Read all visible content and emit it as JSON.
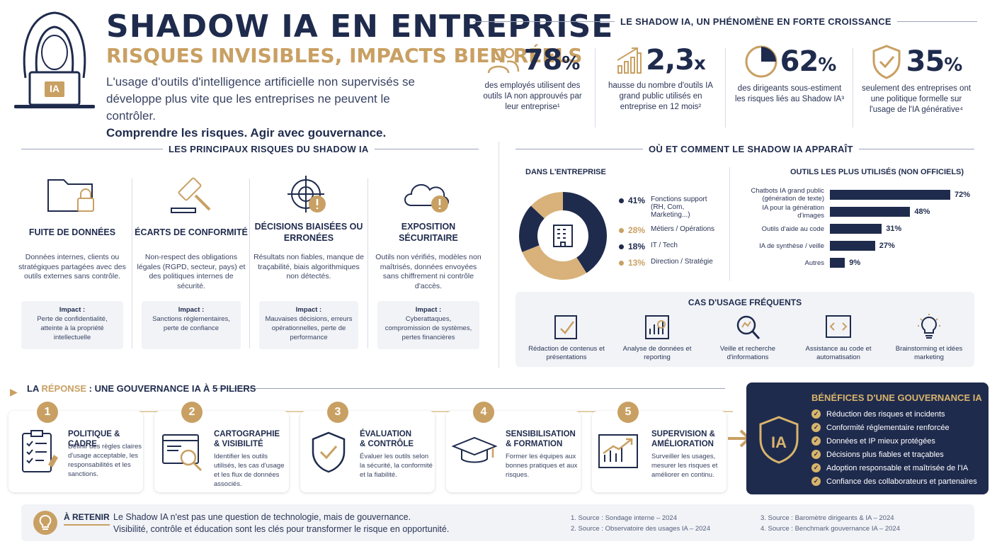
{
  "header": {
    "title": "SHADOW IA EN ENTREPRISE",
    "subtitle": "RISQUES INVISIBLES, IMPACTS BIEN RÉELS",
    "intro": "L'usage d'outils d'intelligence artificielle non supervisés se développe plus vite que les entreprises ne peuvent le contrôler.",
    "tagline": "Comprendre les risques. Agir avec gouvernance.",
    "laptop_label": "IA"
  },
  "growth": {
    "title": "LE SHADOW IA, UN PHÉNOMÈNE EN FORTE CROISSANCE",
    "stats": [
      {
        "value": "78",
        "unit": "%",
        "text": "des employés utilisent des outils IA non approuvés par leur entreprise¹",
        "icon": "people-icon"
      },
      {
        "value": "2,3",
        "unit": "x",
        "text": "hausse du nombre d'outils IA grand public utilisés en entreprise en 12 mois²",
        "icon": "growth-chart-icon"
      },
      {
        "value": "62",
        "unit": "%",
        "text": "des dirigeants sous-estiment les risques liés au Shadow IA³",
        "icon": "pie-icon"
      },
      {
        "value": "35",
        "unit": "%",
        "text": "seulement des entreprises ont une politique formelle sur l'usage de l'IA générative⁴",
        "icon": "shield-check-icon"
      }
    ]
  },
  "risks": {
    "title": "LES PRINCIPAUX RISQUES DU SHADOW IA",
    "items": [
      {
        "title": "FUITE DE DONNÉES",
        "desc": "Données internes, clients ou stratégiques partagées avec des outils externes sans contrôle.",
        "impact_label": "Impact :",
        "impact": "Perte de confidentialité, atteinte à la propriété intellectuelle"
      },
      {
        "title": "ÉCARTS DE CONFORMITÉ",
        "desc": "Non-respect des obligations légales (RGPD, secteur, pays) et des politiques internes de sécurité.",
        "impact_label": "Impact :",
        "impact": "Sanctions réglementaires, perte de confiance"
      },
      {
        "title": "DÉCISIONS BIAISÉES OU ERRONÉES",
        "desc": "Résultats non fiables, manque de traçabilité, biais algorithmiques non détectés.",
        "impact_label": "Impact :",
        "impact": "Mauvaises décisions, erreurs opérationnelles, perte de performance"
      },
      {
        "title": "EXPOSITION SÉCURITAIRE",
        "desc": "Outils non vérifiés, modèles non maîtrisés, données envoyées sans chiffrement ni contrôle d'accès.",
        "impact_label": "Impact :",
        "impact": "Cyberattaques, compromission de systèmes, pertes financières"
      }
    ]
  },
  "where": {
    "title": "OÙ ET COMMENT LE SHADOW IA APPARAÎT",
    "donut_title": "DANS L'ENTREPRISE",
    "legend": [
      {
        "pct": "41%",
        "label": "Fonctions support (RH, Com, Marketing...)",
        "value": 41,
        "color": "#1f2b4d"
      },
      {
        "pct": "28%",
        "label": "Métiers / Opérations",
        "value": 28,
        "color": "#c9a063"
      },
      {
        "pct": "18%",
        "label": "IT / Tech",
        "value": 18,
        "color": "#1f2b4d"
      },
      {
        "pct": "13%",
        "label": "Direction / Stratégie",
        "value": 13,
        "color": "#c9a063"
      }
    ],
    "bars_title": "OUTILS LES PLUS UTILISÉS (NON OFFICIELS)",
    "bars": [
      {
        "label": "Chatbots IA grand public (génération de texte)",
        "value": 72,
        "pct": "72%"
      },
      {
        "label": "IA pour la génération d'images",
        "value": 48,
        "pct": "48%"
      },
      {
        "label": "Outils d'aide au code",
        "value": 31,
        "pct": "31%"
      },
      {
        "label": "IA de synthèse / veille",
        "value": 27,
        "pct": "27%"
      },
      {
        "label": "Autres",
        "value": 9,
        "pct": "9%"
      }
    ],
    "usecases_title": "CAS D'USAGE FRÉQUENTS",
    "usecases": [
      {
        "label": "Rédaction de contenus et présentations",
        "icon": "document-edit-icon"
      },
      {
        "label": "Analyse de données et reporting",
        "icon": "data-analysis-icon"
      },
      {
        "label": "Veille et recherche d'informations",
        "icon": "magnifier-icon"
      },
      {
        "label": "Assistance au code et automatisation",
        "icon": "code-icon"
      },
      {
        "label": "Brainstorming et idées marketing",
        "icon": "lightbulb-icon"
      }
    ]
  },
  "response": {
    "prefix": "LA ",
    "highlight": "RÉPONSE",
    "suffix": " : UNE GOUVERNANCE IA À 5 PILIERS",
    "pillars": [
      {
        "num": "1",
        "title": "POLITIQUE & CADRE",
        "desc": "Définir des règles claires d'usage acceptable, les responsabilités et les sanctions."
      },
      {
        "num": "2",
        "title": "CARTOGRAPHIE & VISIBILITÉ",
        "desc": "Identifier les outils utilisés, les cas d'usage et les flux de données associés."
      },
      {
        "num": "3",
        "title": "ÉVALUATION & CONTRÔLE",
        "desc": "Évaluer les outils selon la sécurité, la conformité et la fiabilité."
      },
      {
        "num": "4",
        "title": "SENSIBILISATION & FORMATION",
        "desc": "Former les équipes aux bonnes pratiques et aux risques."
      },
      {
        "num": "5",
        "title": "SUPERVISION & AMÉLIORATION",
        "desc": "Surveiller les usages, mesurer les risques et améliorer en continu."
      }
    ]
  },
  "benefits": {
    "title": "BÉNÉFICES D'UNE GOUVERNANCE IA",
    "badge": "IA",
    "items": [
      "Réduction des risques et incidents",
      "Conformité réglementaire renforcée",
      "Données et IP mieux protégées",
      "Décisions plus fiables et traçables",
      "Adoption responsable et maîtrisée de l'IA",
      "Confiance des collaborateurs et partenaires"
    ]
  },
  "retain": {
    "label": "À RETENIR",
    "line1": "Le Shadow IA n'est pas une question de technologie, mais de gouvernance.",
    "line2": "Visibilité, contrôle et éducation sont les clés pour transformer le risque en opportunité."
  },
  "sources": [
    "1. Source : Sondage interne – 2024",
    "2. Source : Observatoire des usages IA – 2024",
    "3. Source : Baromètre dirigeants & IA – 2024",
    "4. Source : Benchmark gouvernance IA – 2024"
  ]
}
